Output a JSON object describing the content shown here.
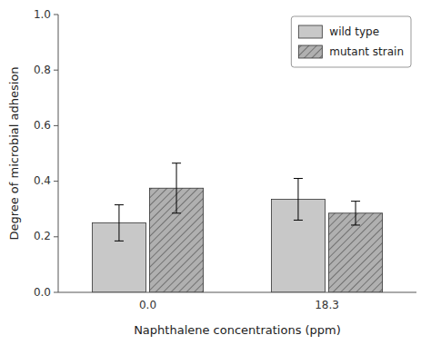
{
  "chart_data": {
    "type": "bar",
    "xlabel": "Naphthalene concentrations (ppm)",
    "ylabel": "Degree of microbial adhesion",
    "categories": [
      "0.0",
      "18.3"
    ],
    "series": [
      {
        "name": "wild type",
        "color": "#c8c8c8",
        "values": [
          0.25,
          0.335
        ],
        "errors": [
          0.065,
          0.075
        ]
      },
      {
        "name": "mutant strain",
        "color": "#b0b0b0",
        "values": [
          0.375,
          0.285
        ],
        "errors": [
          0.09,
          0.043
        ]
      }
    ],
    "ylim": [
      0,
      1
    ],
    "yticks": [
      {
        "value": 0,
        "label": "0.0"
      },
      0.2,
      0.4,
      0.6,
      0.8,
      {
        "value": 1,
        "label": "1.0"
      }
    ],
    "grid": false,
    "legend": "upper right"
  }
}
